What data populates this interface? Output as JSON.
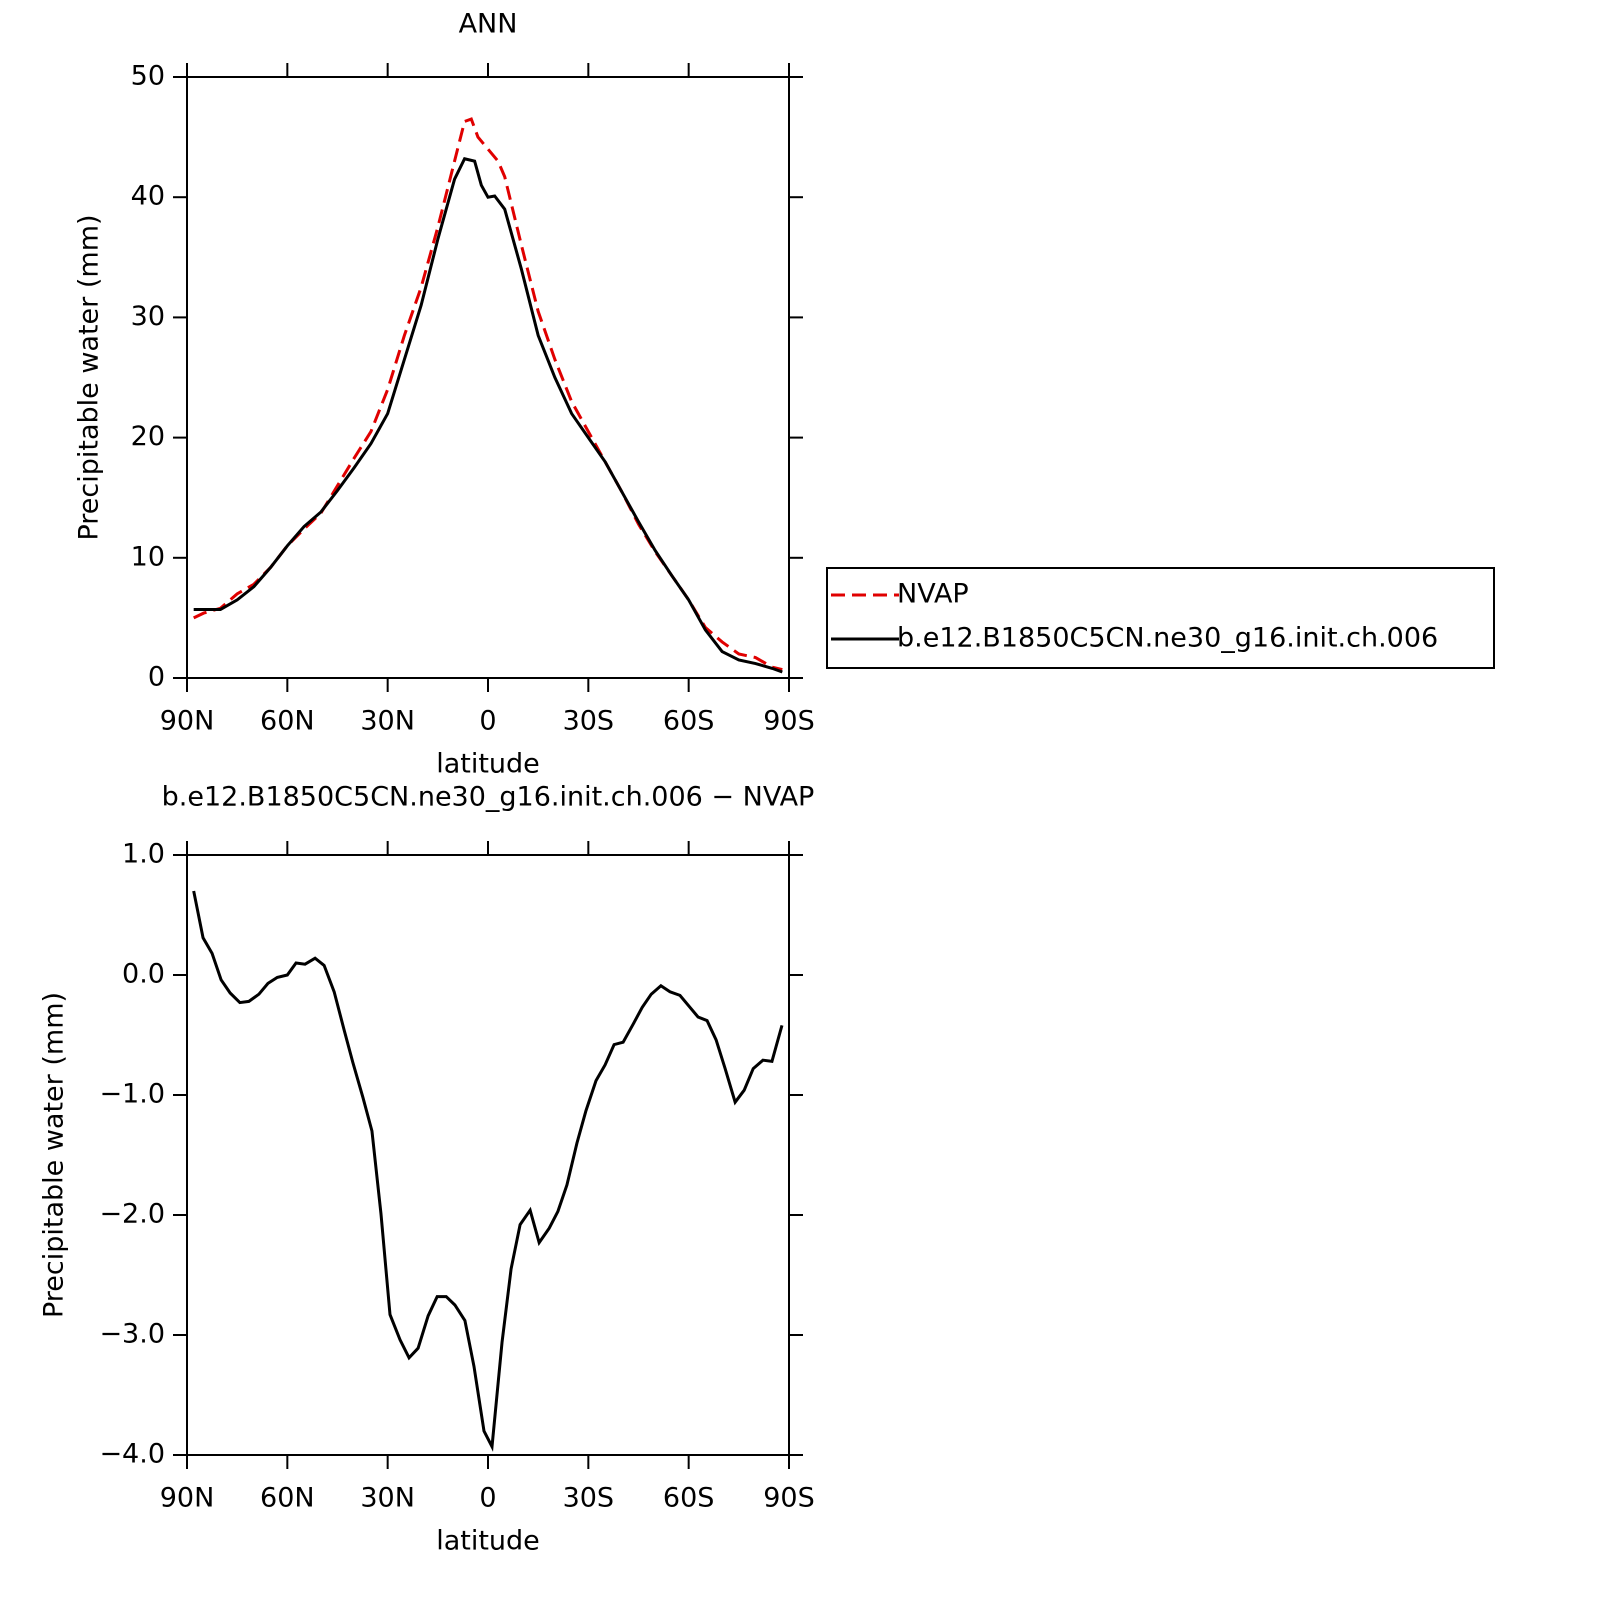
{
  "chart_data": [
    {
      "type": "line",
      "title": "ANN",
      "x_label": "latitude",
      "y_label": "Precipitable water (mm)",
      "xlim": [
        90,
        -90
      ],
      "ylim": [
        0,
        50
      ],
      "xticks": [
        {
          "value": 90,
          "label": "90N"
        },
        {
          "value": 60,
          "label": "60N"
        },
        {
          "value": 30,
          "label": "30N"
        },
        0,
        {
          "value": -30,
          "label": "30S"
        },
        {
          "value": -60,
          "label": "60S"
        },
        {
          "value": -90,
          "label": "90S"
        }
      ],
      "yticks": [
        0,
        10,
        20,
        30,
        40,
        50
      ],
      "legend": "right",
      "series": [
        {
          "name": "NVAP",
          "color": "#e00000",
          "dash": true,
          "x": [
            88,
            85,
            80,
            75,
            70,
            65,
            60,
            55,
            50,
            45,
            40,
            35,
            30,
            25,
            20,
            15,
            10,
            7,
            5,
            3,
            0,
            -3,
            -5,
            -10,
            -15,
            -20,
            -25,
            -30,
            -35,
            -40,
            -45,
            -50,
            -55,
            -60,
            -65,
            -70,
            -75,
            -80,
            -85,
            -88
          ],
          "values": [
            5.0,
            5.4,
            5.8,
            7.0,
            7.8,
            9.2,
            11.0,
            12.4,
            13.7,
            16.0,
            18.3,
            20.5,
            24.0,
            28.5,
            32.5,
            37.5,
            43.0,
            46.3,
            46.5,
            45.0,
            44.0,
            43.0,
            41.7,
            36.0,
            30.5,
            26.5,
            23.0,
            20.5,
            18.0,
            15.5,
            12.8,
            10.5,
            8.5,
            6.5,
            4.2,
            3.0,
            2.0,
            1.7,
            0.9,
            0.7
          ]
        },
        {
          "name": "b.e12.B1850C5CN.ne30_g16.init.ch.006",
          "color": "#000000",
          "dash": false,
          "x": [
            88,
            85,
            80,
            75,
            70,
            65,
            60,
            55,
            50,
            45,
            40,
            35,
            30,
            25,
            20,
            15,
            10,
            7,
            4,
            2,
            0,
            -2,
            -5,
            -10,
            -15,
            -20,
            -25,
            -30,
            -35,
            -40,
            -45,
            -50,
            -55,
            -60,
            -65,
            -70,
            -75,
            -80,
            -85,
            -88
          ],
          "values": [
            5.7,
            5.7,
            5.7,
            6.5,
            7.6,
            9.2,
            11.0,
            12.6,
            13.8,
            15.6,
            17.5,
            19.5,
            22.0,
            26.5,
            31.0,
            36.5,
            41.5,
            43.2,
            43.0,
            41.0,
            40.0,
            40.1,
            39.0,
            34.0,
            28.5,
            25.0,
            22.0,
            20.0,
            18.0,
            15.5,
            13.0,
            10.6,
            8.5,
            6.5,
            4.0,
            2.2,
            1.5,
            1.2,
            0.8,
            0.5
          ]
        }
      ]
    },
    {
      "type": "line",
      "title": "b.e12.B1850C5CN.ne30_g16.init.ch.006 − NVAP",
      "x_label": "latitude",
      "y_label": "Precipitable water (mm)",
      "xlim": [
        90,
        -90
      ],
      "ylim": [
        -4,
        1
      ],
      "xticks": [
        {
          "value": 90,
          "label": "90N"
        },
        {
          "value": 60,
          "label": "60N"
        },
        {
          "value": 30,
          "label": "30N"
        },
        0,
        {
          "value": -30,
          "label": "30S"
        },
        {
          "value": -60,
          "label": "60S"
        },
        {
          "value": -90,
          "label": "90S"
        }
      ],
      "yticks": [
        {
          "value": 1,
          "label": "1.0"
        },
        {
          "value": 0,
          "label": "0.0"
        },
        {
          "value": -1,
          "label": "−1.0"
        },
        {
          "value": -2,
          "label": "−2.0"
        },
        {
          "value": -3,
          "label": "−3.0"
        },
        {
          "value": -4,
          "label": "−4.0"
        }
      ],
      "series": [
        {
          "color": "#000000",
          "dash": false,
          "x": [
            88,
            85.2,
            82.5,
            79.8,
            77.1,
            74.2,
            71.5,
            68.5,
            65.8,
            63,
            60,
            57.4,
            54.7,
            51.7,
            49,
            46,
            43,
            40.4,
            37.4,
            34.7,
            32,
            29.3,
            26.3,
            23.6,
            20.9,
            17.9,
            15.2,
            12.5,
            9.9,
            6.9,
            4.2,
            1.2,
            -1.2,
            -4.2,
            -6.9,
            -9.6,
            -12.6,
            -15.3,
            -18.3,
            -20.9,
            -23.6,
            -26.6,
            -29.3,
            -32.3,
            -35,
            -37.7,
            -40.4,
            -43.4,
            -46.1,
            -48.8,
            -51.7,
            -54.4,
            -57.4,
            -60.1,
            -62.8,
            -65.5,
            -68.2,
            -70.9,
            -73.9,
            -76.6,
            -79.3,
            -82.2,
            -84.9,
            -87.9
          ],
          "values": [
            0.7,
            0.31,
            0.18,
            -0.04,
            -0.15,
            -0.23,
            -0.22,
            -0.16,
            -0.07,
            -0.02,
            0,
            0.1,
            0.09,
            0.14,
            0.08,
            -0.14,
            -0.46,
            -0.73,
            -1.02,
            -1.3,
            -1.99,
            -2.83,
            -3.04,
            -3.19,
            -3.11,
            -2.84,
            -2.68,
            -2.68,
            -2.75,
            -2.88,
            -3.26,
            -3.8,
            -3.93,
            -3.06,
            -2.45,
            -2.08,
            -1.96,
            -2.23,
            -2.11,
            -1.97,
            -1.75,
            -1.4,
            -1.13,
            -0.88,
            -0.75,
            -0.58,
            -0.56,
            -0.41,
            -0.27,
            -0.16,
            -0.09,
            -0.14,
            -0.17,
            -0.26,
            -0.35,
            -0.38,
            -0.54,
            -0.78,
            -1.06,
            -0.96,
            -0.78,
            -0.71,
            -0.72,
            -0.42
          ]
        }
      ]
    }
  ]
}
